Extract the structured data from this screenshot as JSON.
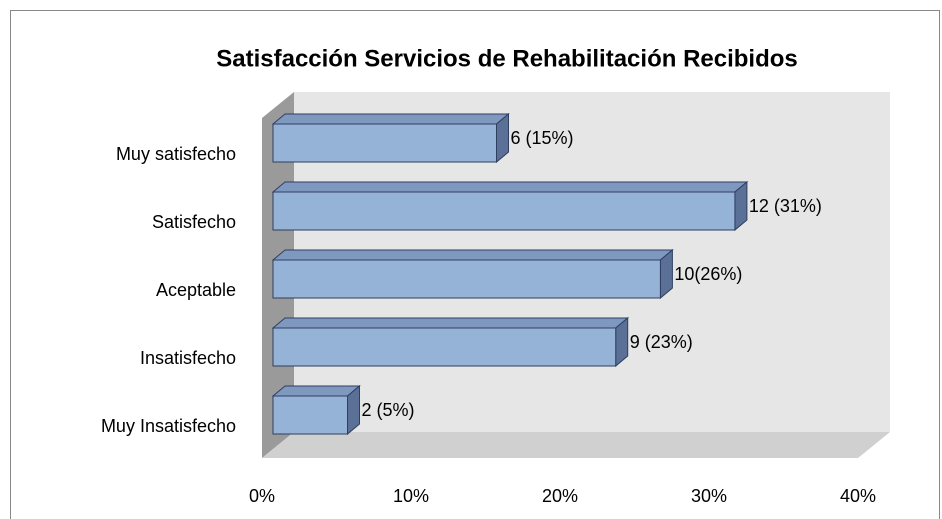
{
  "chart_data": {
    "type": "bar3d_horizontal",
    "title": "Satisfacción Servicios de Rehabilitación Recibidos",
    "categories": [
      "Muy satisfecho",
      "Satisfecho",
      "Aceptable",
      "Insatisfecho",
      "Muy Insatisfecho"
    ],
    "values": [
      15,
      31,
      26,
      23,
      5
    ],
    "value_labels": [
      "6 (15%)",
      "12 (31%)",
      "10(26%)",
      "9 (23%)",
      "2 (5%)"
    ],
    "color": "#95b3d7",
    "xlim": [
      0,
      40
    ],
    "xticks": [
      {
        "value": 0,
        "label": "0%"
      },
      {
        "value": 10,
        "label": "10%"
      },
      {
        "value": 20,
        "label": "20%"
      },
      {
        "value": 30,
        "label": "30%"
      },
      {
        "value": 40,
        "label": "40%"
      }
    ]
  }
}
